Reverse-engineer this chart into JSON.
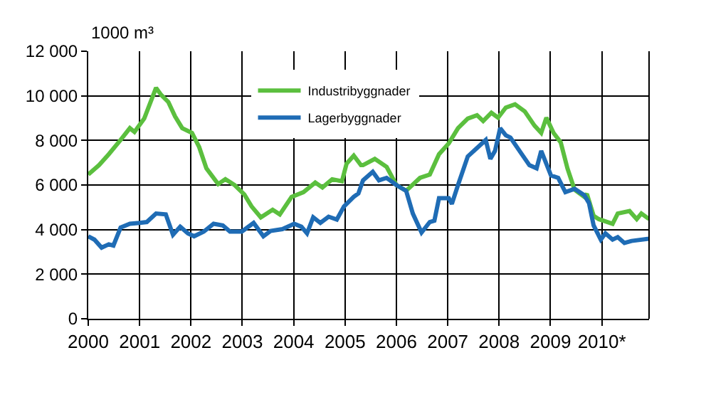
{
  "chart_data": {
    "type": "line",
    "ylabel": "1000 m³",
    "xlim": [
      2000,
      2010.92
    ],
    "xticks": [
      2000,
      2001,
      2002,
      2003,
      2004,
      2005,
      2006,
      2007,
      2008,
      2009,
      {
        "value": 2010,
        "label": "2010*"
      }
    ],
    "ylim": [
      0,
      12000
    ],
    "yticks": [
      0,
      {
        "value": 2000,
        "label": "2 000"
      },
      {
        "value": 4000,
        "label": "4 000"
      },
      {
        "value": 6000,
        "label": "6 000"
      },
      {
        "value": 8000,
        "label": "8 000"
      },
      {
        "value": 10000,
        "label": "10 000"
      },
      {
        "value": 12000,
        "label": "12 000"
      }
    ],
    "grid": true,
    "legend": "top",
    "marker": "none",
    "line_style": "solid",
    "series": [
      {
        "name": "Industribyggnader",
        "color": "#5bbf3e",
        "x": [
          2000,
          2000.21,
          2000.4,
          2000.63,
          2000.81,
          2000.9,
          2001.09,
          2001.32,
          2001.42,
          2001.56,
          2001.69,
          2001.83,
          2002.02,
          2002.16,
          2002.3,
          2002.53,
          2002.67,
          2002.85,
          2003.04,
          2003.18,
          2003.36,
          2003.59,
          2003.73,
          2003.96,
          2004.19,
          2004.42,
          2004.56,
          2004.75,
          2004.94,
          2005.03,
          2005.17,
          2005.31,
          2005.35,
          2005.58,
          2005.81,
          2006,
          2006.19,
          2006.46,
          2006.65,
          2006.83,
          2007.02,
          2007.2,
          2007.39,
          2007.57,
          2007.69,
          2007.85,
          2007.98,
          2008.13,
          2008.31,
          2008.5,
          2008.69,
          2008.82,
          2008.92,
          2009.06,
          2009.2,
          2009.33,
          2009.47,
          2009.66,
          2009.71,
          2009.84,
          2009.94,
          2010.03,
          2010.21,
          2010.31,
          2010.54,
          2010.68,
          2010.77,
          2010.92
        ],
        "values": [
          6470,
          6890,
          7380,
          8020,
          8550,
          8380,
          8980,
          10360,
          10040,
          9720,
          9080,
          8550,
          8340,
          7700,
          6750,
          6040,
          6260,
          6000,
          5570,
          5040,
          4550,
          4890,
          4680,
          5470,
          5680,
          6110,
          5890,
          6260,
          6170,
          6960,
          7320,
          6890,
          6890,
          7170,
          6810,
          6000,
          5740,
          6320,
          6470,
          7380,
          7870,
          8550,
          8980,
          9130,
          8870,
          9240,
          9020,
          9470,
          9620,
          9300,
          8660,
          8340,
          9020,
          8340,
          7910,
          6750,
          5790,
          5470,
          5600,
          4620,
          4470,
          4400,
          4260,
          4720,
          4830,
          4470,
          4720,
          4470
        ]
      },
      {
        "name": "Lagerbyggnader",
        "color": "#1f6cb5",
        "x": [
          2000,
          2000.12,
          2000.26,
          2000.4,
          2000.49,
          2000.63,
          2000.81,
          2001,
          2001.14,
          2001.32,
          2001.51,
          2001.65,
          2001.79,
          2001.94,
          2002.06,
          2002.25,
          2002.44,
          2002.62,
          2002.76,
          2002.99,
          2003.22,
          2003.41,
          2003.55,
          2003.78,
          2004.01,
          2004.15,
          2004.26,
          2004.38,
          2004.52,
          2004.68,
          2004.84,
          2004.98,
          2005.17,
          2005.26,
          2005.35,
          2005.54,
          2005.66,
          2005.81,
          2006,
          2006.19,
          2006.32,
          2006.49,
          2006.65,
          2006.74,
          2006.83,
          2007.02,
          2007.08,
          2007.2,
          2007.39,
          2007.57,
          2007.74,
          2007.83,
          2007.92,
          2008.02,
          2008.13,
          2008.22,
          2008.41,
          2008.59,
          2008.73,
          2008.82,
          2009.01,
          2009.15,
          2009.29,
          2009.47,
          2009.66,
          2009.75,
          2009.84,
          2009.98,
          2010.07,
          2010.21,
          2010.31,
          2010.44,
          2010.58,
          2010.92
        ],
        "values": [
          3700,
          3550,
          3190,
          3340,
          3280,
          4090,
          4260,
          4300,
          4340,
          4720,
          4680,
          3770,
          4130,
          3830,
          3700,
          3910,
          4260,
          4190,
          3910,
          3910,
          4300,
          3700,
          3940,
          4020,
          4260,
          4130,
          3830,
          4550,
          4300,
          4580,
          4450,
          5040,
          5470,
          5620,
          6210,
          6590,
          6210,
          6320,
          6000,
          5740,
          4720,
          3870,
          4340,
          4400,
          5410,
          5410,
          5150,
          6000,
          7280,
          7660,
          8020,
          7170,
          7530,
          8550,
          8230,
          8130,
          7490,
          6890,
          6750,
          7530,
          6430,
          6320,
          5680,
          5830,
          5540,
          5190,
          4190,
          3550,
          3830,
          3550,
          3660,
          3400,
          3490,
          3590
        ]
      }
    ]
  }
}
